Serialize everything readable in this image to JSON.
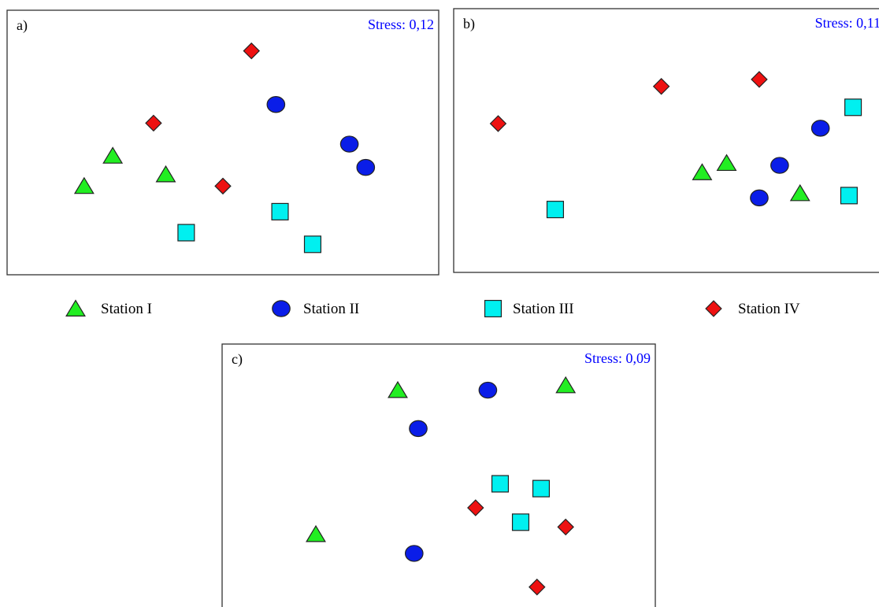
{
  "colors": {
    "stress_text": "#0000ff",
    "frame": "#333333"
  },
  "legend": [
    {
      "label": "Station I",
      "shape": "triangle",
      "color": "#22ee22"
    },
    {
      "label": "Station II",
      "shape": "circle",
      "color": "#0a1de8"
    },
    {
      "label": "Station III",
      "shape": "square",
      "color": "#00f0f0"
    },
    {
      "label": "Station IV",
      "shape": "diamond",
      "color": "#ee1111"
    }
  ],
  "chart_data": [
    {
      "type": "scatter",
      "panel_label": "a)",
      "stress_label": "Stress: 0,12",
      "xlabel": "",
      "ylabel": "",
      "xlim": [
        0,
        100
      ],
      "ylim": [
        0,
        100
      ],
      "axes_shown": false,
      "grid": false,
      "series": [
        {
          "name": "Station I",
          "points": [
            [
              16,
              33
            ],
            [
              23,
              46
            ],
            [
              36,
              38
            ]
          ]
        },
        {
          "name": "Station II",
          "points": [
            [
              63,
              68
            ],
            [
              81,
              51
            ],
            [
              85,
              41
            ]
          ]
        },
        {
          "name": "Station III",
          "points": [
            [
              41,
              13
            ],
            [
              64,
              22
            ],
            [
              72,
              8
            ]
          ]
        },
        {
          "name": "Station IV",
          "points": [
            [
              57,
              91
            ],
            [
              33,
              60
            ],
            [
              50,
              33
            ]
          ]
        }
      ]
    },
    {
      "type": "scatter",
      "panel_label": "b)",
      "stress_label": "Stress: 0,11",
      "xlabel": "",
      "ylabel": "",
      "xlim": [
        0,
        100
      ],
      "ylim": [
        0,
        100
      ],
      "axes_shown": false,
      "grid": false,
      "series": [
        {
          "name": "Station I",
          "points": [
            [
              58,
              38
            ],
            [
              64,
              42
            ],
            [
              82,
              29
            ]
          ]
        },
        {
          "name": "Station II",
          "points": [
            [
              77,
              41
            ],
            [
              87,
              57
            ],
            [
              72,
              27
            ]
          ]
        },
        {
          "name": "Station III",
          "points": [
            [
              22,
              22
            ],
            [
              95,
              66
            ],
            [
              94,
              28
            ]
          ]
        },
        {
          "name": "Station IV",
          "points": [
            [
              8,
              59
            ],
            [
              48,
              75
            ],
            [
              72,
              78
            ]
          ]
        }
      ]
    },
    {
      "type": "scatter",
      "panel_label": "c)",
      "stress_label": "Stress: 0,09",
      "xlabel": "",
      "ylabel": "",
      "xlim": [
        0,
        100
      ],
      "ylim": [
        0,
        100
      ],
      "axes_shown": false,
      "grid": false,
      "series": [
        {
          "name": "Station I",
          "points": [
            [
              40,
              89
            ],
            [
              81,
              91
            ],
            [
              20,
              29
            ]
          ]
        },
        {
          "name": "Station II",
          "points": [
            [
              62,
              89
            ],
            [
              45,
              73
            ],
            [
              44,
              21
            ]
          ]
        },
        {
          "name": "Station III",
          "points": [
            [
              65,
              50
            ],
            [
              75,
              48
            ],
            [
              70,
              34
            ]
          ]
        },
        {
          "name": "Station IV",
          "points": [
            [
              59,
              40
            ],
            [
              81,
              32
            ],
            [
              74,
              7
            ]
          ]
        }
      ]
    }
  ]
}
